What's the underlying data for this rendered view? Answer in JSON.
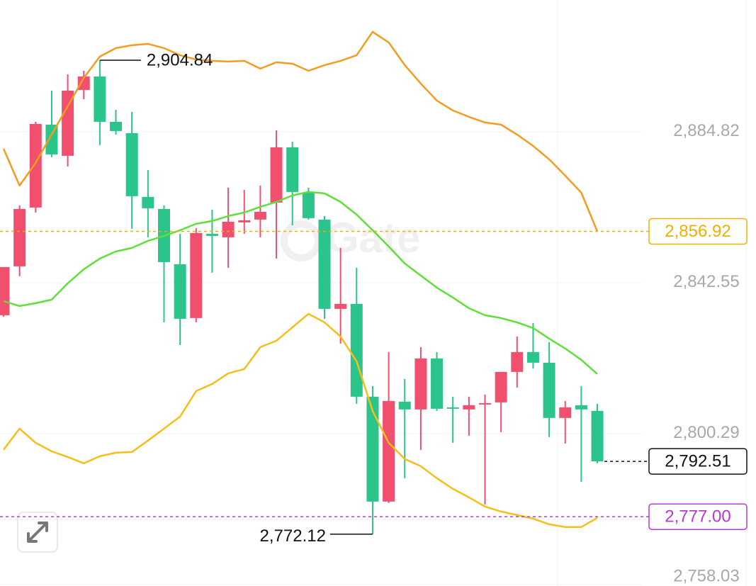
{
  "chart_data": {
    "type": "candlestick",
    "watermark": "Gate",
    "up_color": "#f0506e",
    "down_color": "#2bc48a",
    "grid": true,
    "ylim": [
      2757.6,
      2921.7
    ],
    "yticks": [
      {
        "value": 2758.03,
        "label": "2,758.03"
      },
      {
        "value": 2800.29,
        "label": "2,800.29"
      },
      {
        "value": 2842.55,
        "label": "2,842.55"
      },
      {
        "value": 2884.82,
        "label": "2,884.82"
      }
    ],
    "open": [
      2833.42,
      2847.11,
      2863.58,
      2886.8,
      2878.07,
      2896.52,
      2900.29,
      2887.59,
      2884.42,
      2866.56,
      2863.19,
      2847.71,
      2832.63,
      2856.24,
      2855.25,
      2859.42,
      2860.21,
      2864.97,
      2880.45,
      2867.75,
      2860.21,
      2835.21,
      2836.6,
      2810.61,
      2781.24,
      2809.22,
      2807.04,
      2821.32,
      2807.63,
      2807.04,
      2808.42,
      2809.02,
      2817.55,
      2823.11,
      2820.13,
      2804.66,
      2808.23,
      2806.64
    ],
    "high": [
      2846.92,
      2864.18,
      2887.59,
      2896.32,
      2900.88,
      2901.88,
      2904.84,
      2890.96,
      2890.37,
      2874.1,
      2864.18,
      2856.24,
      2857.83,
      2862.99,
      2869.14,
      2868.54,
      2869.73,
      2885.21,
      2882.04,
      2869.14,
      2861.2,
      2852.27,
      2846.72,
      2813.58,
      2823.11,
      2815.57,
      2824.5,
      2823.11,
      2810.61,
      2810.61,
      2811.2,
      2817.55,
      2827.47,
      2831.24,
      2825.89,
      2809.42,
      2813.58,
      2808.62
    ],
    "low": [
      2833.03,
      2844.34,
      2862.19,
      2877.67,
      2875.09,
      2893.94,
      2881.04,
      2884.02,
      2857.63,
      2855.25,
      2831.44,
      2825.09,
      2831.44,
      2845.33,
      2846.72,
      2856.24,
      2855.25,
      2849.3,
      2858.62,
      2860.21,
      2832.43,
      2825.49,
      2808.62,
      2772.12,
      2780.85,
      2787.79,
      2795.73,
      2806.64,
      2797.71,
      2799.69,
      2780.45,
      2800.69,
      2813.19,
      2818.54,
      2799.3,
      2797.51,
      2786.8,
      2791.96
    ],
    "close": [
      2846.92,
      2863.19,
      2887.0,
      2878.46,
      2896.32,
      2900.29,
      2887.59,
      2885.01,
      2866.76,
      2863.38,
      2848.31,
      2832.43,
      2856.44,
      2855.65,
      2859.61,
      2860.01,
      2862.39,
      2880.45,
      2867.95,
      2860.61,
      2835.21,
      2836.6,
      2810.61,
      2781.24,
      2809.42,
      2807.04,
      2821.32,
      2807.23,
      2807.23,
      2808.23,
      2808.82,
      2817.55,
      2823.11,
      2820.13,
      2804.66,
      2807.63,
      2807.04,
      2792.51
    ],
    "lines": [
      {
        "color": "#f39c1f",
        "values": [
          2880.05,
          2869.73,
          2876.08,
          2884.02,
          2891.96,
          2899.89,
          2905.84,
          2908.23,
          2909.02,
          2909.42,
          2908.23,
          2906.24,
          2905.05,
          2904.65,
          2904.46,
          2904.65,
          2902.47,
          2904.26,
          2903.86,
          2901.88,
          2903.46,
          2904.65,
          2906.24,
          2912.79,
          2909.81,
          2903.46,
          2898.3,
          2893.54,
          2890.76,
          2888.98,
          2887.39,
          2886.8,
          2884.02,
          2880.84,
          2877.07,
          2872.51,
          2867.75,
          2856.92
        ]
      },
      {
        "color": "#5ee03a",
        "values": [
          2837.39,
          2836.0,
          2836.8,
          2837.79,
          2842.35,
          2846.32,
          2849.3,
          2851.28,
          2852.27,
          2854.26,
          2855.65,
          2857.23,
          2859.02,
          2859.81,
          2861.2,
          2862.19,
          2863.78,
          2865.17,
          2866.96,
          2867.95,
          2867.55,
          2865.17,
          2861.6,
          2857.23,
          2852.67,
          2847.91,
          2844.54,
          2841.16,
          2838.38,
          2835.41,
          2833.42,
          2832.63,
          2831.44,
          2829.85,
          2826.88,
          2824.1,
          2820.92,
          2816.96
        ]
      },
      {
        "color": "#f7bd1a",
        "values": [
          2795.73,
          2801.68,
          2797.71,
          2795.33,
          2793.74,
          2791.96,
          2793.94,
          2794.93,
          2795.13,
          2798.31,
          2801.68,
          2805.05,
          2812.19,
          2814.18,
          2817.15,
          2818.35,
          2824.5,
          2826.28,
          2830.05,
          2833.82,
          2831.44,
          2827.47,
          2820.53,
          2806.64,
          2797.71,
          2793.15,
          2791.16,
          2787.79,
          2784.81,
          2782.43,
          2779.85,
          2778.46,
          2777.47,
          2776.48,
          2774.89,
          2774.1,
          2774.1,
          2776.68
        ]
      }
    ],
    "price_lines": [
      {
        "value": 2856.92,
        "label": "2,856.92",
        "color": "#f0b000",
        "full": true
      },
      {
        "value": 2792.51,
        "label": "2,792.51",
        "color": "#111111",
        "full": false
      },
      {
        "value": 2777.0,
        "label": "2,777.00",
        "color": "#b43ad6",
        "full": true
      }
    ],
    "high_marker": {
      "value": 2904.84,
      "label": "2,904.84"
    },
    "low_marker": {
      "value": 2772.12,
      "label": "2,772.12"
    }
  }
}
